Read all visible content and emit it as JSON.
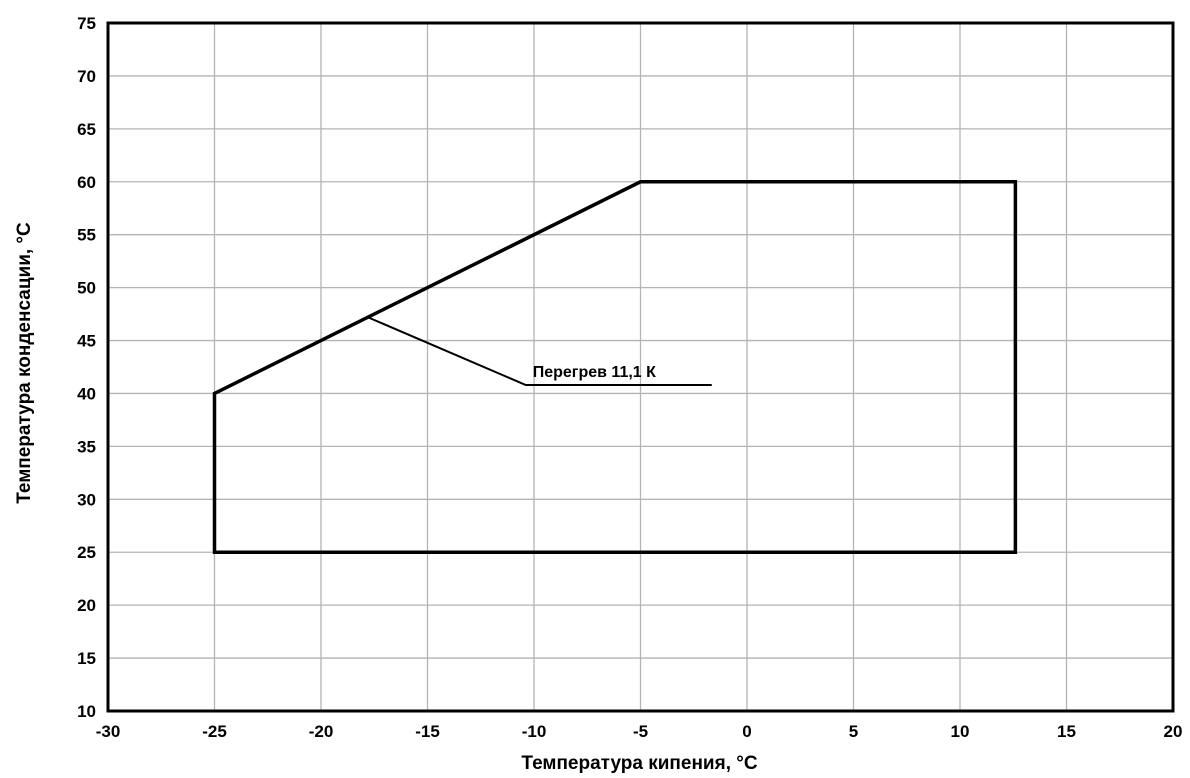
{
  "chart_data": {
    "type": "line",
    "title": "",
    "xlabel": "Температура кипения, °C",
    "ylabel": "Температура конденсации, °C",
    "xlim": [
      -30,
      20
    ],
    "ylim": [
      10,
      75
    ],
    "x_ticks": [
      -30,
      -25,
      -20,
      -15,
      -10,
      -5,
      0,
      5,
      10,
      15,
      20
    ],
    "y_ticks": [
      10,
      15,
      20,
      25,
      30,
      35,
      40,
      45,
      50,
      55,
      60,
      65,
      70,
      75
    ],
    "x_tick_labels": [
      "-30",
      "-25",
      "-20",
      "-15",
      "-10",
      "-5",
      "0",
      "5",
      "10",
      "15",
      "20"
    ],
    "y_tick_labels": [
      "10",
      "15",
      "20",
      "25",
      "30",
      "35",
      "40",
      "45",
      "50",
      "55",
      "60",
      "65",
      "70",
      "75"
    ],
    "grid": true,
    "legend": "none",
    "series": [
      {
        "points": [
          {
            "x": -25,
            "y": 25
          },
          {
            "x": -25,
            "y": 40
          },
          {
            "x": -5,
            "y": 60
          },
          {
            "x": 12.6,
            "y": 60
          },
          {
            "x": 12.6,
            "y": 25
          },
          {
            "x": -25,
            "y": 25
          }
        ]
      }
    ],
    "annotations": [
      {
        "text": "Перегрев 11,1 К",
        "point": {
          "x": -17.8,
          "y": 47.2
        },
        "label_at": {
          "x": -10.2,
          "y": 40.8
        }
      }
    ]
  }
}
